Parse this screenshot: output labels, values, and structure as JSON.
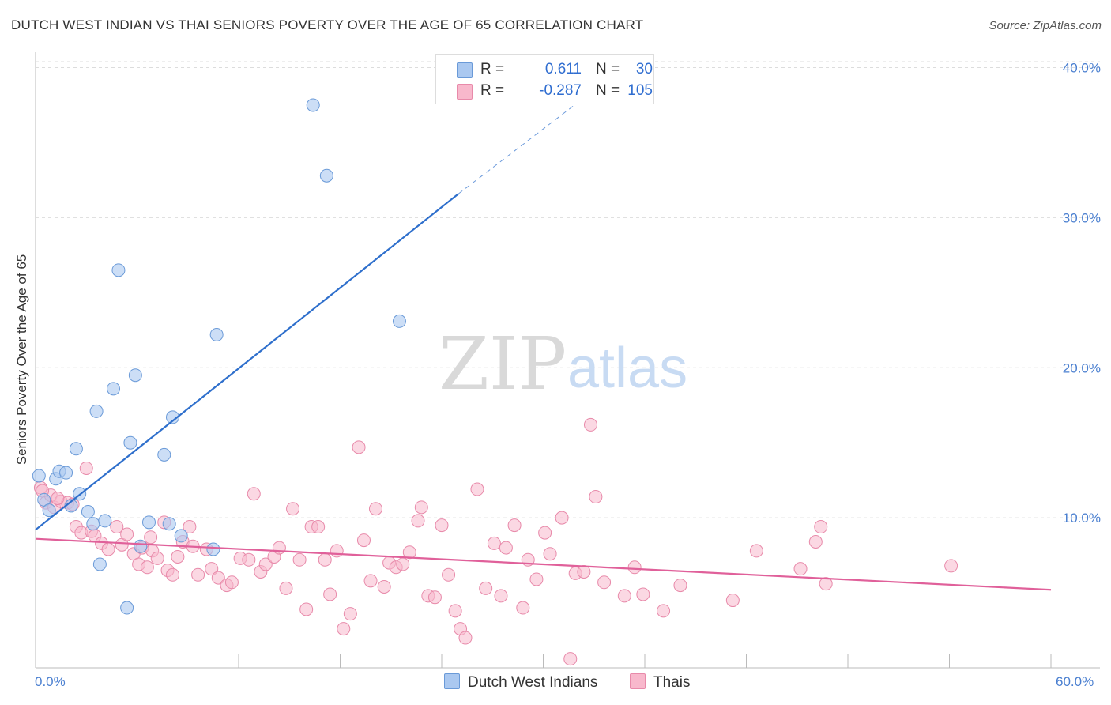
{
  "header": {
    "title": "DUTCH WEST INDIAN VS THAI SENIORS POVERTY OVER THE AGE OF 65 CORRELATION CHART",
    "source": "Source: ZipAtlas.com"
  },
  "watermark": {
    "zip": "ZIP",
    "atlas": "atlas"
  },
  "legend": {
    "blue": {
      "r_label": "R =",
      "r_value": "0.611",
      "n_label": "N =",
      "n_value": "30",
      "color": "#aac8f0"
    },
    "pink": {
      "r_label": "R =",
      "r_value": "-0.287",
      "n_label": "N =",
      "n_value": "105",
      "color": "#f8b8cc"
    }
  },
  "bottom_legend": {
    "blue_label": "Dutch West Indians",
    "pink_label": "Thais"
  },
  "x_axis": {
    "min_label": "0.0%",
    "max_label": "60.0%"
  },
  "chart_data": {
    "type": "scatter",
    "title": "DUTCH WEST INDIAN VS THAI SENIORS POVERTY OVER THE AGE OF 65 CORRELATION CHART",
    "ylabel": "Seniors Poverty Over the Age of 65",
    "xlabel": "",
    "xlim": [
      0,
      60
    ],
    "ylim": [
      0,
      40
    ],
    "y_ticks": [
      10,
      20,
      30,
      40
    ],
    "y_tick_labels": [
      "10.0%",
      "20.0%",
      "30.0%",
      "40.0%"
    ],
    "x_tick_labels": [
      "0.0%",
      "60.0%"
    ],
    "grid": true,
    "colors": {
      "blue_fill": "#aac8f0",
      "blue_stroke": "#6a9ad8",
      "blue_line": "#2e6fcc",
      "pink_fill": "#f8b8cc",
      "pink_stroke": "#e88aaa",
      "pink_line": "#e0609a"
    },
    "series": [
      {
        "name": "Dutch West Indians",
        "trend": {
          "x": [
            0,
            25
          ],
          "y": [
            9.2,
            31.6
          ],
          "dashed_to": [
            33,
            38.5
          ]
        },
        "points": [
          [
            0.2,
            12.8
          ],
          [
            0.5,
            11.2
          ],
          [
            0.8,
            10.5
          ],
          [
            1.2,
            12.6
          ],
          [
            1.4,
            13.1
          ],
          [
            1.8,
            13.0
          ],
          [
            2.1,
            10.8
          ],
          [
            2.4,
            14.6
          ],
          [
            2.6,
            11.6
          ],
          [
            3.1,
            10.4
          ],
          [
            3.4,
            9.6
          ],
          [
            3.6,
            17.1
          ],
          [
            3.8,
            6.9
          ],
          [
            4.1,
            9.8
          ],
          [
            4.6,
            18.6
          ],
          [
            4.9,
            26.5
          ],
          [
            5.4,
            4.0
          ],
          [
            5.6,
            15.0
          ],
          [
            5.9,
            19.5
          ],
          [
            6.2,
            8.1
          ],
          [
            6.7,
            9.7
          ],
          [
            7.6,
            14.2
          ],
          [
            7.9,
            9.6
          ],
          [
            8.1,
            16.7
          ],
          [
            8.6,
            8.8
          ],
          [
            10.5,
            7.9
          ],
          [
            10.7,
            22.2
          ],
          [
            16.4,
            37.5
          ],
          [
            17.2,
            32.8
          ],
          [
            21.5,
            23.1
          ]
        ]
      },
      {
        "name": "Thais",
        "trend": {
          "x": [
            0,
            60
          ],
          "y": [
            8.6,
            5.2
          ]
        },
        "points": [
          [
            0.3,
            12.0
          ],
          [
            0.6,
            11.0
          ],
          [
            0.9,
            11.5
          ],
          [
            1.1,
            10.7
          ],
          [
            1.5,
            11.1
          ],
          [
            1.9,
            11.0
          ],
          [
            2.2,
            10.9
          ],
          [
            2.4,
            9.4
          ],
          [
            2.7,
            9.0
          ],
          [
            3.0,
            13.3
          ],
          [
            3.3,
            9.1
          ],
          [
            3.5,
            8.8
          ],
          [
            3.9,
            8.3
          ],
          [
            4.3,
            7.9
          ],
          [
            4.8,
            9.4
          ],
          [
            5.1,
            8.2
          ],
          [
            5.4,
            8.9
          ],
          [
            5.8,
            7.6
          ],
          [
            6.1,
            6.9
          ],
          [
            6.3,
            8.0
          ],
          [
            6.6,
            6.7
          ],
          [
            6.9,
            7.8
          ],
          [
            7.2,
            7.3
          ],
          [
            7.6,
            9.7
          ],
          [
            7.8,
            6.5
          ],
          [
            8.1,
            6.2
          ],
          [
            8.4,
            7.4
          ],
          [
            8.7,
            8.4
          ],
          [
            9.1,
            9.4
          ],
          [
            9.3,
            8.1
          ],
          [
            9.6,
            6.2
          ],
          [
            10.1,
            7.9
          ],
          [
            10.4,
            6.6
          ],
          [
            10.8,
            6.0
          ],
          [
            11.3,
            5.5
          ],
          [
            11.6,
            5.7
          ],
          [
            12.1,
            7.3
          ],
          [
            12.6,
            7.2
          ],
          [
            12.9,
            11.6
          ],
          [
            13.3,
            6.4
          ],
          [
            13.6,
            6.9
          ],
          [
            14.1,
            7.4
          ],
          [
            14.4,
            8.0
          ],
          [
            14.8,
            5.3
          ],
          [
            15.2,
            10.6
          ],
          [
            15.6,
            7.2
          ],
          [
            16.0,
            3.9
          ],
          [
            16.3,
            9.4
          ],
          [
            16.7,
            9.4
          ],
          [
            17.1,
            7.2
          ],
          [
            17.4,
            4.9
          ],
          [
            17.8,
            7.8
          ],
          [
            18.2,
            2.6
          ],
          [
            18.6,
            3.6
          ],
          [
            19.1,
            14.7
          ],
          [
            19.4,
            8.5
          ],
          [
            19.8,
            5.8
          ],
          [
            20.1,
            10.6
          ],
          [
            20.6,
            5.4
          ],
          [
            20.9,
            7.0
          ],
          [
            21.3,
            6.7
          ],
          [
            21.7,
            6.9
          ],
          [
            22.1,
            7.7
          ],
          [
            22.6,
            9.8
          ],
          [
            22.8,
            10.7
          ],
          [
            23.2,
            4.8
          ],
          [
            23.6,
            4.7
          ],
          [
            24.0,
            9.5
          ],
          [
            24.4,
            6.2
          ],
          [
            24.8,
            3.8
          ],
          [
            25.1,
            2.6
          ],
          [
            25.4,
            2.0
          ],
          [
            26.1,
            11.9
          ],
          [
            26.6,
            5.3
          ],
          [
            27.1,
            8.3
          ],
          [
            27.5,
            4.8
          ],
          [
            27.8,
            8.0
          ],
          [
            28.3,
            9.5
          ],
          [
            28.8,
            4.0
          ],
          [
            29.1,
            7.2
          ],
          [
            29.6,
            5.9
          ],
          [
            30.1,
            9.0
          ],
          [
            30.4,
            7.6
          ],
          [
            31.1,
            10.0
          ],
          [
            31.6,
            0.6
          ],
          [
            31.9,
            6.3
          ],
          [
            32.4,
            6.4
          ],
          [
            33.1,
            11.4
          ],
          [
            32.8,
            16.2
          ],
          [
            33.6,
            5.7
          ],
          [
            34.8,
            4.8
          ],
          [
            35.4,
            6.7
          ],
          [
            35.9,
            4.9
          ],
          [
            37.1,
            3.8
          ],
          [
            38.1,
            5.5
          ],
          [
            41.2,
            4.5
          ],
          [
            42.6,
            7.8
          ],
          [
            45.2,
            6.6
          ],
          [
            46.1,
            8.4
          ],
          [
            46.4,
            9.4
          ],
          [
            46.7,
            5.6
          ],
          [
            54.1,
            6.8
          ],
          [
            0.4,
            11.8
          ],
          [
            1.3,
            11.3
          ],
          [
            6.8,
            8.7
          ]
        ]
      }
    ]
  }
}
